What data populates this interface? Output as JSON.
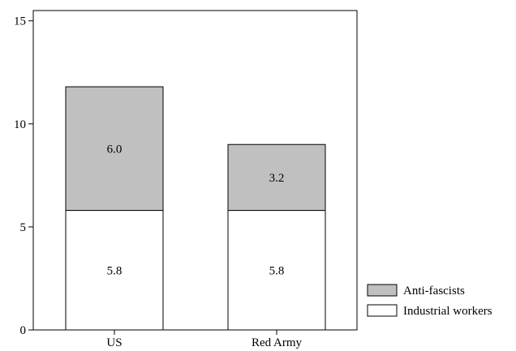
{
  "chart_data": {
    "type": "bar",
    "stacked": true,
    "categories": [
      "US",
      "Red Army"
    ],
    "series": [
      {
        "name": "Industrial workers",
        "values": [
          5.8,
          5.8
        ],
        "color": "#ffffff"
      },
      {
        "name": "Anti-fascists",
        "values": [
          6.0,
          3.2
        ],
        "color": "#c0c0c0"
      }
    ],
    "ylim": [
      0,
      15.5
    ],
    "yticks": [
      0,
      5,
      10,
      15
    ],
    "grid": false,
    "legend_position": "bottom-right outside",
    "legend_order": [
      "Anti-fascists",
      "Industrial workers"
    ],
    "data_labels": true
  }
}
